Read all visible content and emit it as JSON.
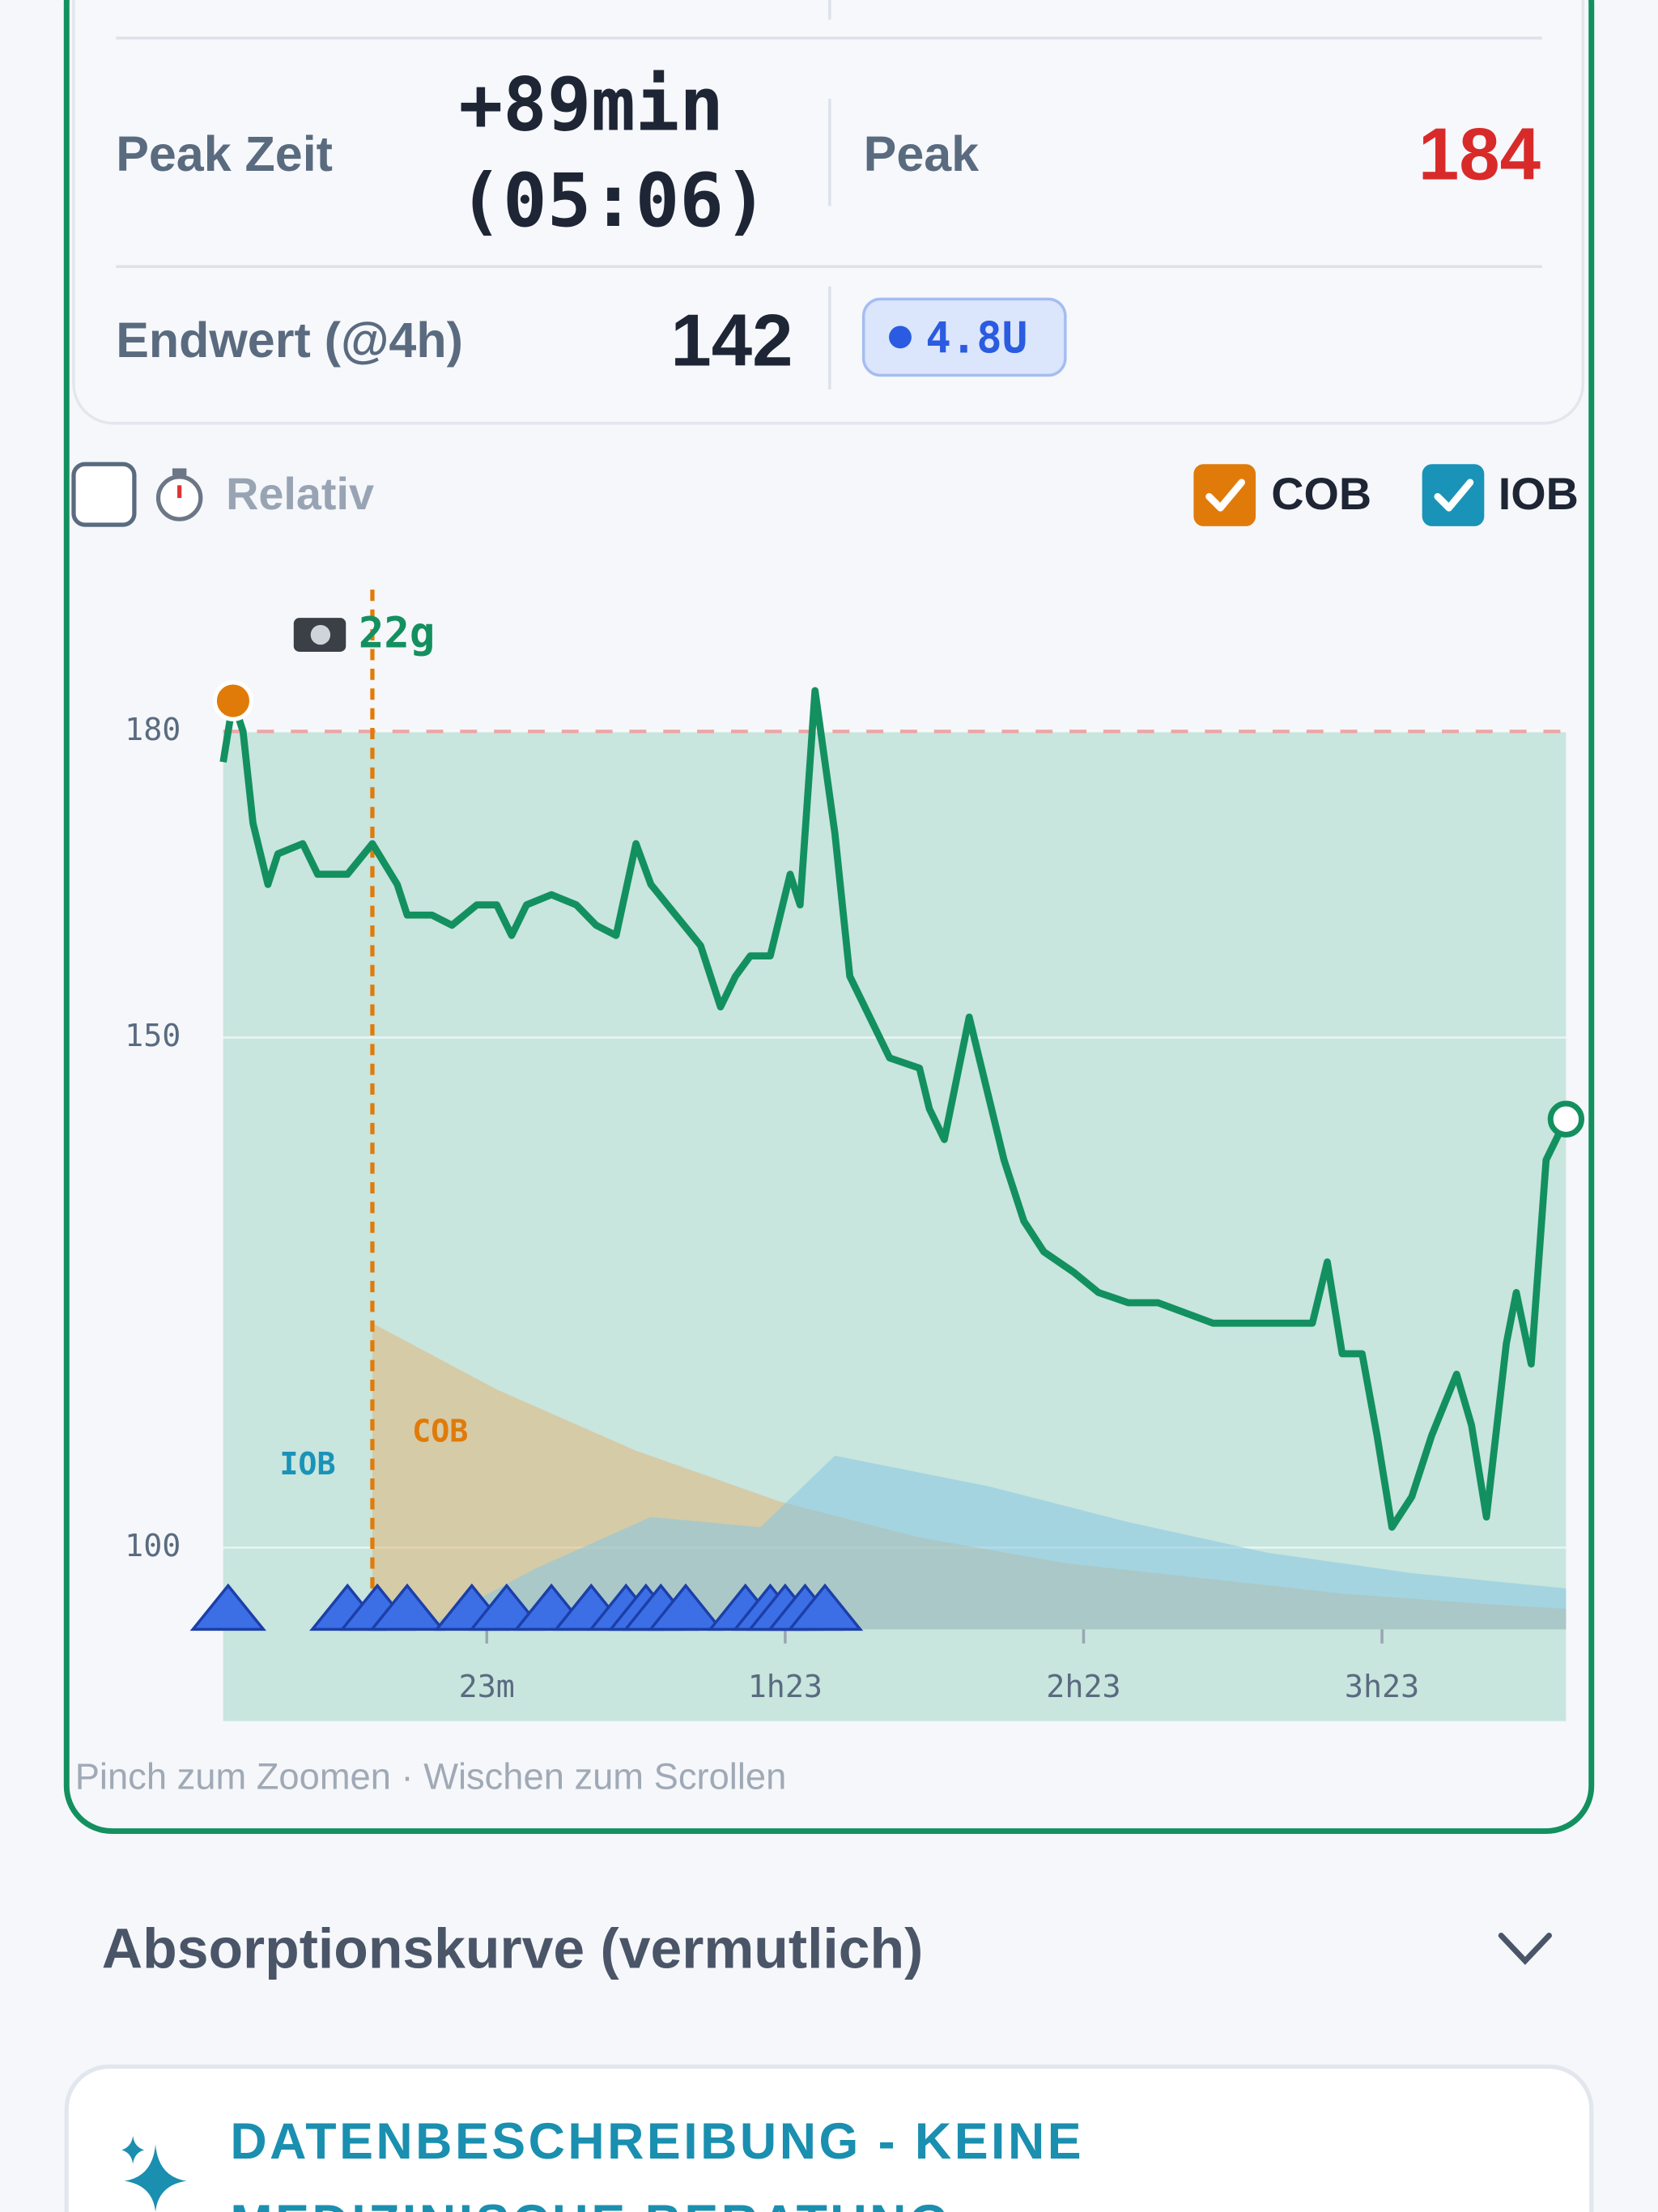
{
  "stats": {
    "peak_time_label": "Peak Zeit",
    "peak_time_value": "+89min",
    "peak_time_clock": "(05:06)",
    "peak_label": "Peak",
    "peak_value": 184,
    "end_label": "Endwert (@4h)",
    "end_value": 142,
    "insulin_badge": "4.8U"
  },
  "controls": {
    "relative": {
      "label": "Relativ",
      "checked": false
    },
    "cob": {
      "label": "COB",
      "checked": true,
      "color": "#e07b0a"
    },
    "iob": {
      "label": "IOB",
      "checked": true,
      "color": "#1a93b8"
    }
  },
  "chart_data": {
    "type": "line",
    "color": "#13905f",
    "band_color": "#c8e5de",
    "threshold": 180,
    "threshold_color": "#f0a3a3",
    "xlim": [
      -30,
      240
    ],
    "ylim": [
      83,
      195
    ],
    "xticks": [
      {
        "value": 23,
        "label": "23m"
      },
      {
        "value": 83,
        "label": "1h23"
      },
      {
        "value": 143,
        "label": "2h23"
      },
      {
        "value": 203,
        "label": "3h23"
      }
    ],
    "yticks": [
      100,
      150,
      180
    ],
    "x": [
      -30,
      -28,
      -26,
      -24,
      -21,
      -19,
      -14,
      -11,
      -5,
      0,
      5,
      7,
      12,
      16,
      21,
      25,
      28,
      31,
      36,
      41,
      45,
      49,
      53,
      56,
      61,
      66,
      70,
      73,
      76,
      80,
      84,
      86,
      89,
      93,
      96,
      100,
      104,
      110,
      112,
      115,
      120,
      123,
      127,
      131,
      135,
      141,
      146,
      152,
      158,
      169,
      183,
      189,
      192,
      195,
      199,
      202,
      205,
      209,
      213,
      218,
      221,
      224,
      228,
      230,
      233,
      236,
      240
    ],
    "values": [
      177,
      183,
      180,
      171,
      165,
      168,
      169,
      166,
      166,
      169,
      165,
      162,
      162,
      161,
      163,
      163,
      160,
      163,
      164,
      163,
      161,
      160,
      169,
      165,
      162,
      159,
      153,
      156,
      158,
      158,
      166,
      163,
      184,
      170,
      156,
      152,
      148,
      147,
      143,
      140,
      152,
      146,
      138,
      132,
      129,
      127,
      125,
      124,
      124,
      122,
      122,
      122,
      128,
      119,
      119,
      111,
      102,
      105,
      111,
      117,
      112,
      103,
      120,
      125,
      118,
      138,
      142
    ],
    "areas": [
      {
        "name": "COB",
        "color": "#e0b77a",
        "x": [
          0,
          25,
          53,
          82,
          110,
          139,
          167,
          195,
          223,
          240
        ],
        "values": [
          122,
          115.5,
          109.5,
          104.5,
          101,
          98.5,
          97,
          95.5,
          94.5,
          94
        ]
      },
      {
        "name": "IOB",
        "color": "#86c6e2",
        "x": [
          10,
          33,
          56,
          78,
          93,
          124,
          152,
          180,
          209,
          240
        ],
        "values": [
          92,
          98,
          103,
          102,
          109,
          106,
          102.5,
          99.5,
          97.5,
          96
        ]
      }
    ],
    "meal": {
      "x": 0,
      "label": "22g"
    },
    "bolus_x": [
      -29,
      -5,
      1,
      7,
      20,
      27,
      36,
      44,
      51,
      55,
      58,
      63,
      75,
      80,
      83,
      87,
      91
    ]
  },
  "footer": {
    "hint": "Pinch zum Zoomen · Wischen zum Scrollen",
    "section_title": "Absorptionskurve (vermutlich)",
    "disclaimer_line1": "DATENBESCHREIBUNG - KEINE",
    "disclaimer_line2": "MEDIZINISCHE BERATUNG"
  }
}
